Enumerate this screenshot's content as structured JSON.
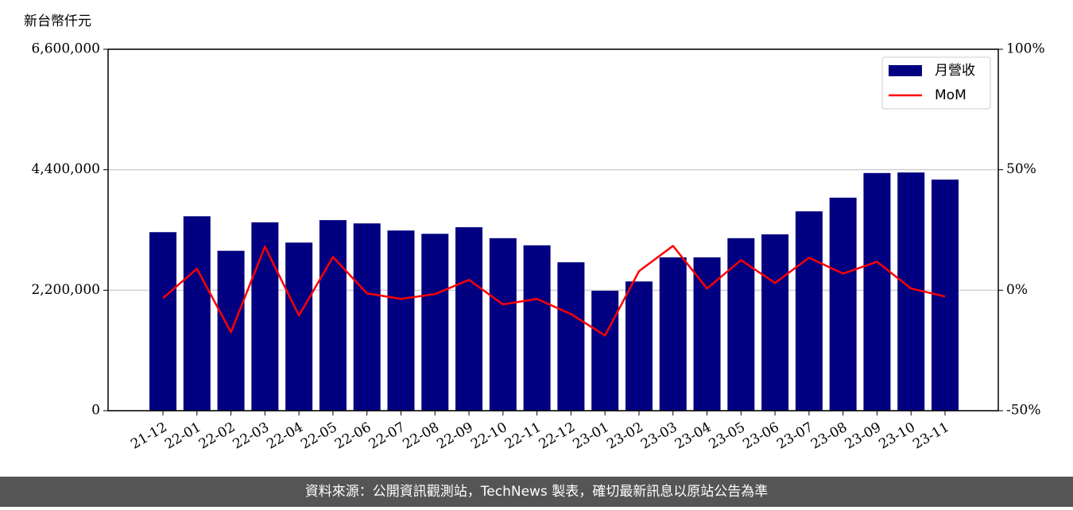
{
  "chart_data": {
    "type": "bar-line",
    "y_label": "新台幣仟元",
    "footer": "資料來源：公開資訊觀測站，TechNews 製表，確切最新訊息以原站公告為準",
    "categories": [
      "21-12",
      "22-01",
      "22-02",
      "22-03",
      "22-04",
      "22-05",
      "22-06",
      "22-07",
      "22-08",
      "22-09",
      "22-10",
      "22-11",
      "22-12",
      "23-01",
      "23-02",
      "23-03",
      "23-04",
      "23-05",
      "23-06",
      "23-07",
      "23-08",
      "23-09",
      "23-10",
      "23-11"
    ],
    "series": [
      {
        "name": "月營收",
        "type": "bar",
        "axis": "y",
        "color": "#000080",
        "values": [
          3260000,
          3550000,
          2920000,
          3440000,
          3070000,
          3480000,
          3420000,
          3290000,
          3230000,
          3350000,
          3150000,
          3020000,
          2710000,
          2190000,
          2360000,
          2800000,
          2800000,
          3150000,
          3220000,
          3640000,
          3890000,
          4340000,
          4350000,
          4220000
        ]
      },
      {
        "name": "MoM",
        "type": "line",
        "axis": "y2",
        "color": "#ff0000",
        "values": [
          -3.3,
          8.9,
          -17.4,
          18.1,
          -10.5,
          13.8,
          -1.3,
          -3.6,
          -1.6,
          4.3,
          -5.9,
          -3.6,
          -9.9,
          -18.8,
          7.9,
          18.4,
          0.7,
          12.5,
          3.0,
          13.5,
          6.9,
          11.8,
          0.7,
          -2.6
        ]
      }
    ],
    "ylim": [
      0,
      6600000
    ],
    "yticks": [
      0,
      {
        "value": 2200000,
        "label": "2,200,000"
      },
      {
        "value": 4400000,
        "label": "4,400,000"
      },
      {
        "value": 6600000,
        "label": "6,600,000"
      }
    ],
    "y2lim": [
      -50,
      100
    ],
    "y2ticks": [
      {
        "value": -50,
        "label": "-50%"
      },
      {
        "value": 0,
        "label": "0%"
      },
      {
        "value": 50,
        "label": "50%"
      },
      {
        "value": 100,
        "label": "100%"
      }
    ],
    "grid": true,
    "legend": "upper right"
  }
}
